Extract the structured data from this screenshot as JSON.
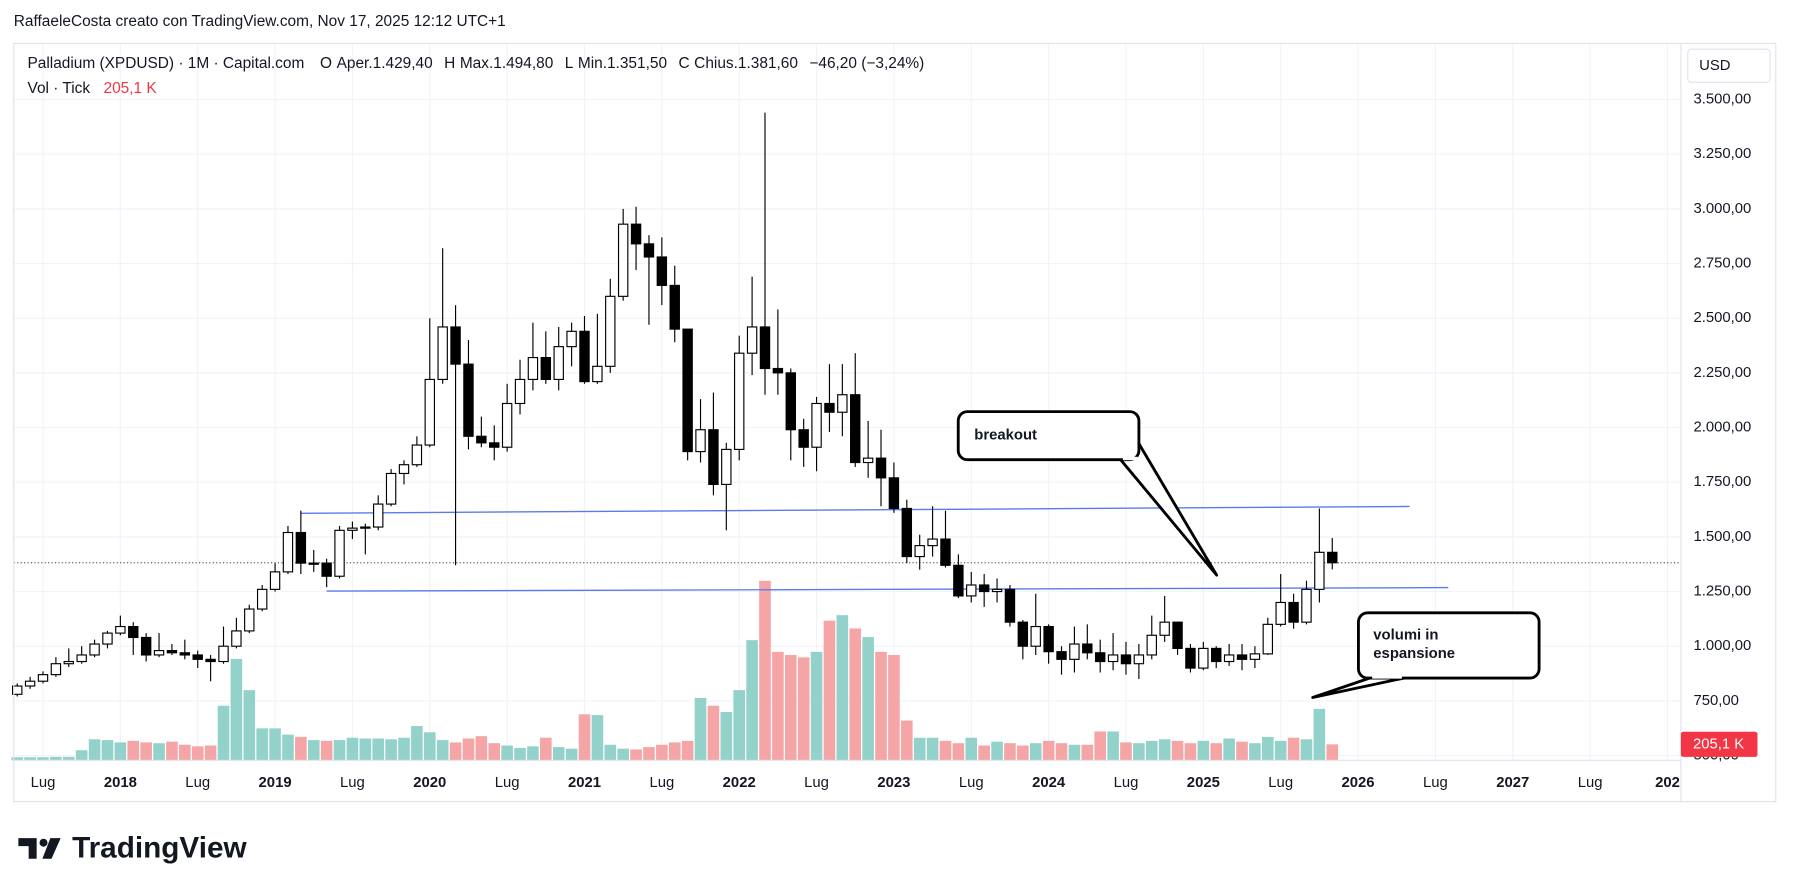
{
  "chart_data": {
    "type": "candlestick",
    "watermark": "RaffaeleCosta creato con TradingView.com, Nov 17, 2025 12:12 UTC+1",
    "title": "Palladium (XPDUSD) · 1M · Capital.com",
    "status_line": [
      "O",
      "Aper.1.429,40",
      "H",
      "Max.1.494,80",
      "L",
      "Min.1.351,50",
      "C",
      "Chius.1.381,60",
      "−46,20 (−3,24%)"
    ],
    "volume_title": "Vol · Tick",
    "volume_last_label": "205,1 K",
    "currency": "USD",
    "brand": "TradingView",
    "x": [
      "2017-05",
      "2017-06",
      "2017-07",
      "2017-08",
      "2017-09",
      "2017-10",
      "2017-11",
      "2017-12",
      "2018-01",
      "2018-02",
      "2018-03",
      "2018-04",
      "2018-05",
      "2018-06",
      "2018-07",
      "2018-08",
      "2018-09",
      "2018-10",
      "2018-11",
      "2018-12",
      "2019-01",
      "2019-02",
      "2019-03",
      "2019-04",
      "2019-05",
      "2019-06",
      "2019-07",
      "2019-08",
      "2019-09",
      "2019-10",
      "2019-11",
      "2019-12",
      "2020-01",
      "2020-02",
      "2020-03",
      "2020-04",
      "2020-05",
      "2020-06",
      "2020-07",
      "2020-08",
      "2020-09",
      "2020-10",
      "2020-11",
      "2020-12",
      "2021-01",
      "2021-02",
      "2021-03",
      "2021-04",
      "2021-05",
      "2021-06",
      "2021-07",
      "2021-08",
      "2021-09",
      "2021-10",
      "2021-11",
      "2021-12",
      "2022-01",
      "2022-02",
      "2022-03",
      "2022-04",
      "2022-05",
      "2022-06",
      "2022-07",
      "2022-08",
      "2022-09",
      "2022-10",
      "2022-11",
      "2022-12",
      "2023-01",
      "2023-02",
      "2023-03",
      "2023-04",
      "2023-05",
      "2023-06",
      "2023-07",
      "2023-08",
      "2023-09",
      "2023-10",
      "2023-11",
      "2023-12",
      "2024-01",
      "2024-02",
      "2024-03",
      "2024-04",
      "2024-05",
      "2024-06",
      "2024-07",
      "2024-08",
      "2024-09",
      "2024-10",
      "2024-11",
      "2024-12",
      "2025-01",
      "2025-02",
      "2025-03",
      "2025-04",
      "2025-05",
      "2025-06",
      "2025-07",
      "2025-08",
      "2025-09",
      "2025-10",
      "2025-11"
    ],
    "open": [
      780,
      818,
      840,
      870,
      920,
      930,
      960,
      1010,
      1060,
      1090,
      1040,
      960,
      980,
      970,
      960,
      940,
      930,
      1000,
      1070,
      1170,
      1260,
      1340,
      1520,
      1380,
      1380,
      1320,
      1530,
      1540,
      1545,
      1650,
      1790,
      1830,
      1920,
      2220,
      2460,
      2290,
      1960,
      1930,
      1910,
      2110,
      2220,
      2320,
      2220,
      2370,
      2440,
      2210,
      2280,
      2600,
      2930,
      2840,
      2780,
      2650,
      2450,
      1890,
      1990,
      1740,
      1900,
      2340,
      2460,
      2270,
      2250,
      1990,
      1910,
      2110,
      2070,
      2150,
      1840,
      1860,
      1770,
      1630,
      1410,
      1460,
      1490,
      1370,
      1230,
      1280,
      1250,
      1260,
      1110,
      1000,
      1090,
      975,
      940,
      1010,
      970,
      930,
      960,
      920,
      960,
      1050,
      1110,
      990,
      900,
      990,
      930,
      960,
      940,
      965,
      1100,
      1200,
      1110,
      1260,
      1429.4
    ],
    "high": [
      830,
      860,
      885,
      950,
      990,
      1000,
      1030,
      1070,
      1140,
      1110,
      1060,
      1060,
      1010,
      1030,
      980,
      960,
      1090,
      1130,
      1190,
      1280,
      1380,
      1550,
      1620,
      1440,
      1400,
      1550,
      1570,
      1560,
      1690,
      1810,
      1850,
      1960,
      2500,
      2820,
      2560,
      2400,
      2050,
      2010,
      2200,
      2310,
      2480,
      2440,
      2460,
      2480,
      2510,
      2520,
      2680,
      3000,
      3010,
      2880,
      2870,
      2740,
      2450,
      2130,
      2160,
      1930,
      2420,
      2690,
      3440,
      2540,
      2270,
      2040,
      2140,
      2290,
      2290,
      2340,
      2030,
      1990,
      1840,
      1670,
      1510,
      1640,
      1620,
      1420,
      1340,
      1330,
      1310,
      1280,
      1120,
      1240,
      1100,
      1000,
      1090,
      1100,
      1030,
      1060,
      1020,
      1010,
      1140,
      1230,
      1110,
      1010,
      1020,
      1000,
      1010,
      1010,
      1000,
      1130,
      1330,
      1240,
      1300,
      1630,
      1494.8
    ],
    "low": [
      770,
      805,
      830,
      860,
      905,
      920,
      950,
      990,
      1050,
      960,
      930,
      950,
      960,
      940,
      900,
      840,
      920,
      990,
      1060,
      1160,
      1250,
      1330,
      1330,
      1340,
      1270,
      1310,
      1490,
      1420,
      1530,
      1640,
      1740,
      1820,
      1910,
      2200,
      1370,
      1900,
      1910,
      1850,
      1890,
      2060,
      2170,
      2200,
      2170,
      2280,
      2200,
      2200,
      2250,
      2580,
      2720,
      2470,
      2560,
      2390,
      1850,
      1840,
      1690,
      1530,
      1850,
      2240,
      2150,
      2150,
      1850,
      1820,
      1800,
      1980,
      1960,
      1820,
      1770,
      1640,
      1610,
      1380,
      1350,
      1410,
      1360,
      1220,
      1200,
      1180,
      1200,
      1090,
      940,
      960,
      920,
      870,
      880,
      940,
      880,
      890,
      870,
      850,
      940,
      1020,
      960,
      880,
      890,
      900,
      910,
      890,
      900,
      960,
      1090,
      1080,
      1100,
      1200,
      1351.5
    ],
    "close": [
      818,
      840,
      870,
      920,
      930,
      960,
      1010,
      1060,
      1090,
      1040,
      960,
      980,
      970,
      960,
      940,
      930,
      1000,
      1070,
      1170,
      1260,
      1340,
      1520,
      1380,
      1380,
      1320,
      1530,
      1540,
      1545,
      1650,
      1790,
      1830,
      1920,
      2220,
      2460,
      2290,
      1960,
      1930,
      1910,
      2110,
      2220,
      2320,
      2220,
      2370,
      2440,
      2210,
      2280,
      2600,
      2930,
      2840,
      2780,
      2650,
      2450,
      1890,
      1990,
      1740,
      1900,
      2340,
      2460,
      2270,
      2250,
      1990,
      1910,
      2110,
      2070,
      2150,
      1840,
      1860,
      1770,
      1630,
      1410,
      1460,
      1490,
      1370,
      1230,
      1280,
      1250,
      1260,
      1110,
      1000,
      1090,
      975,
      940,
      1010,
      970,
      930,
      960,
      920,
      960,
      1050,
      1110,
      990,
      900,
      990,
      930,
      960,
      940,
      965,
      1100,
      1200,
      1110,
      1260,
      1429.4,
      1381.6
    ],
    "volume": [
      40,
      40,
      40,
      45,
      45,
      130,
      270,
      260,
      230,
      250,
      230,
      220,
      240,
      200,
      180,
      190,
      700,
      1300,
      900,
      410,
      410,
      330,
      300,
      260,
      250,
      260,
      290,
      280,
      280,
      270,
      290,
      440,
      360,
      260,
      230,
      280,
      310,
      220,
      190,
      160,
      180,
      290,
      170,
      150,
      590,
      580,
      200,
      150,
      140,
      170,
      200,
      230,
      250,
      800,
      700,
      620,
      900,
      1540,
      2300,
      1390,
      1350,
      1320,
      1390,
      1790,
      1860,
      1690,
      1580,
      1390,
      1350,
      510,
      290,
      290,
      250,
      220,
      290,
      190,
      240,
      220,
      190,
      220,
      250,
      220,
      200,
      200,
      370,
      370,
      230,
      220,
      250,
      270,
      250,
      220,
      250,
      220,
      280,
      240,
      220,
      300,
      250,
      290,
      270,
      660,
      205.1
    ],
    "up_color": "#ffffff",
    "down_color": "#000000",
    "volume_up_color": "#92d2cb",
    "volume_down_color": "#f5a5a5",
    "trendline_color": "#5b7bea",
    "badge_color": "#f23645",
    "xlim": [
      "2017-05",
      "2027-12"
    ],
    "xticks": [
      {
        "value": "2017-07",
        "label": "Lug"
      },
      {
        "value": "2018-01",
        "label": "2018"
      },
      {
        "value": "2018-07",
        "label": "Lug"
      },
      {
        "value": "2019-01",
        "label": "2019"
      },
      {
        "value": "2019-07",
        "label": "Lug"
      },
      {
        "value": "2020-01",
        "label": "2020"
      },
      {
        "value": "2020-07",
        "label": "Lug"
      },
      {
        "value": "2021-01",
        "label": "2021"
      },
      {
        "value": "2021-07",
        "label": "Lug"
      },
      {
        "value": "2022-01",
        "label": "2022"
      },
      {
        "value": "2022-07",
        "label": "Lug"
      },
      {
        "value": "2023-01",
        "label": "2023"
      },
      {
        "value": "2023-07",
        "label": "Lug"
      },
      {
        "value": "2024-01",
        "label": "2024"
      },
      {
        "value": "2024-07",
        "label": "Lug"
      },
      {
        "value": "2025-01",
        "label": "2025"
      },
      {
        "value": "2025-07",
        "label": "Lug"
      },
      {
        "value": "2026-01",
        "label": "2026"
      },
      {
        "value": "2026-07",
        "label": "Lug"
      },
      {
        "value": "2027-01",
        "label": "2027"
      },
      {
        "value": "2027-07",
        "label": "Lug"
      },
      {
        "value": "2028-01",
        "label": "202"
      }
    ],
    "ylim": [
      478,
      3746
    ],
    "yticks": [
      {
        "value": 500,
        "label": "500,00"
      },
      {
        "value": 750,
        "label": "750,00"
      },
      {
        "value": 1000,
        "label": "1.000,00"
      },
      {
        "value": 1250,
        "label": "1.250,00"
      },
      {
        "value": 1500,
        "label": "1.500,00"
      },
      {
        "value": 1750,
        "label": "1.750,00"
      },
      {
        "value": 2000,
        "label": "2.000,00"
      },
      {
        "value": 2250,
        "label": "2.250,00"
      },
      {
        "value": 2500,
        "label": "2.500,00"
      },
      {
        "value": 2750,
        "label": "2.750,00"
      },
      {
        "value": 3000,
        "label": "3.000,00"
      },
      {
        "value": 3250,
        "label": "3.250,00"
      },
      {
        "value": 3500,
        "label": "3.500,00"
      }
    ],
    "grid": true,
    "trendlines": [
      {
        "x": [
          "2019-03",
          "2026-05"
        ],
        "y": [
          1608,
          1639
        ]
      },
      {
        "x": [
          "2019-05",
          "2026-08"
        ],
        "y": [
          1252,
          1268
        ]
      }
    ],
    "annotations": [
      {
        "lines": [
          "breakout"
        ]
      },
      {
        "lines": [
          "volumi in",
          "espansione"
        ]
      }
    ]
  }
}
